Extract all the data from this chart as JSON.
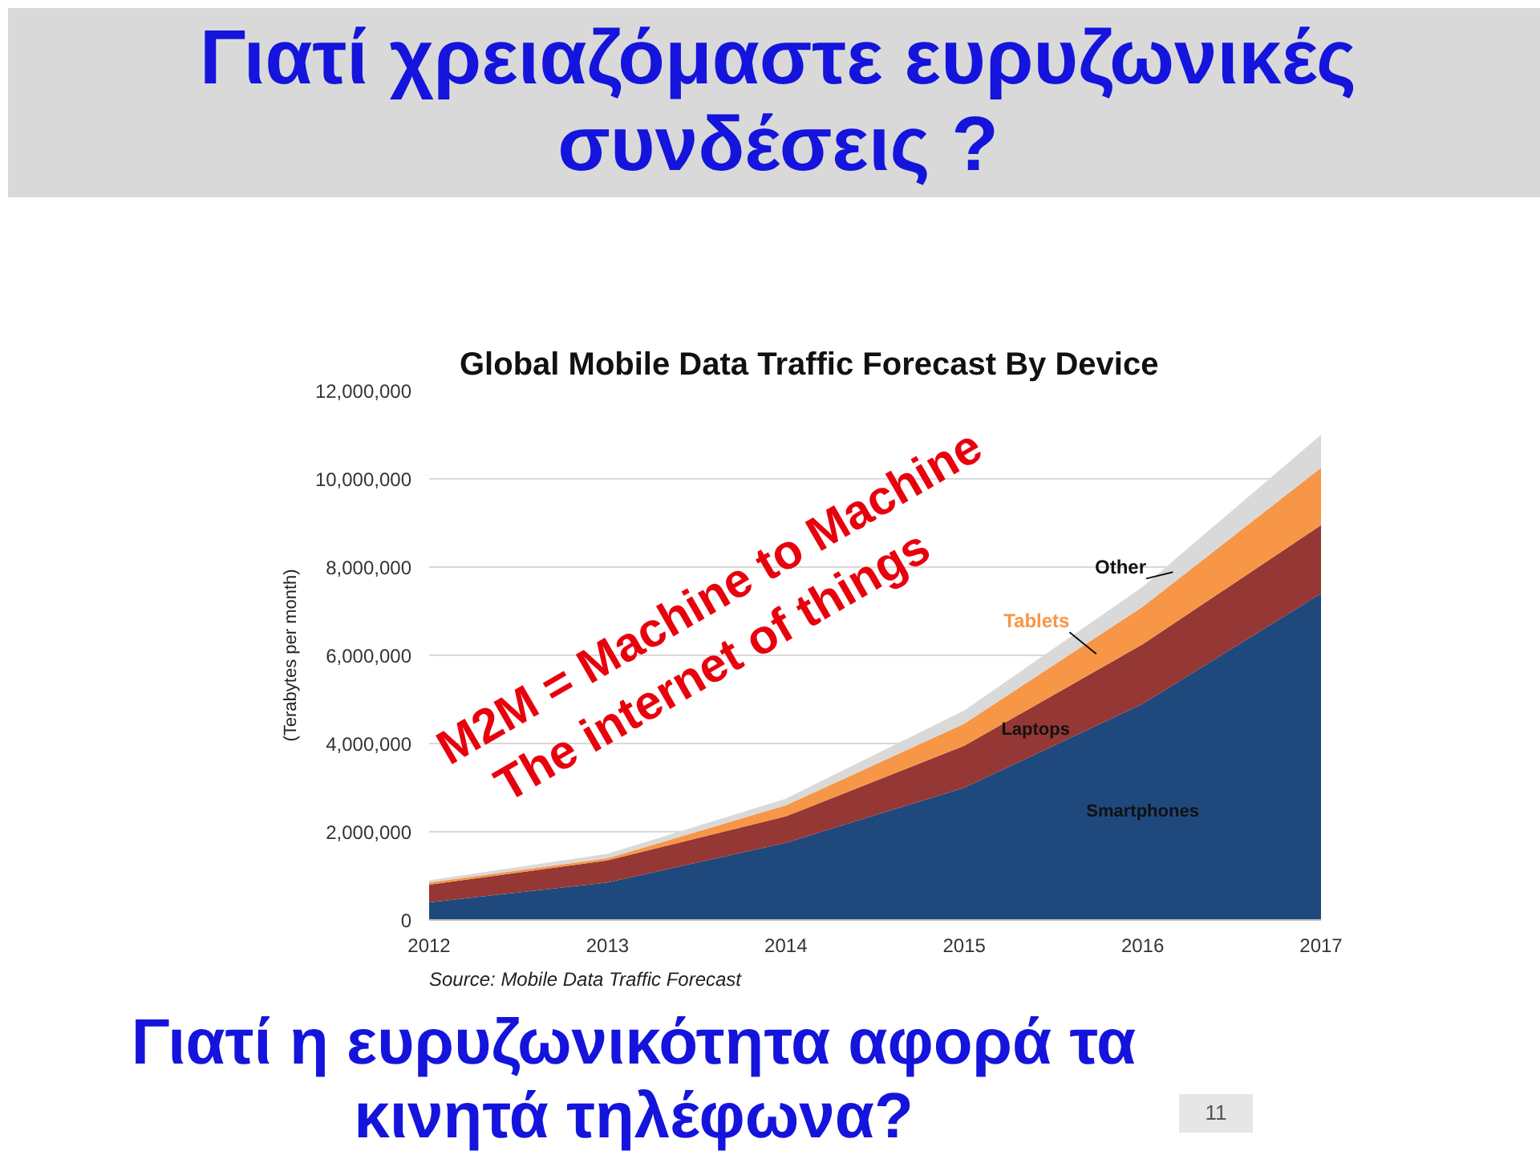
{
  "chart_data": {
    "type": "area",
    "stacked": true,
    "title": "Γιατί χρειαζόμαστε ευρυζωνικές συνδέσεις ?",
    "subtitle": "Global Mobile Data Traffic Forecast By Device",
    "ylabel": "(Terabytes per month)",
    "annotations": [
      "M2M = Machine to Machine",
      "The internet of things",
      "Source: Mobile Data Traffic Forecast",
      "Γιατί η ευρυζωνικότητα αφορά τα κινητά τηλέφωνα?",
      "11"
    ],
    "x": [
      2012,
      2013,
      2014,
      2015,
      2016,
      2017
    ],
    "xlim": [
      2012,
      2017
    ],
    "xticks": [
      2012,
      2013,
      2014,
      2015,
      2016,
      2017
    ],
    "ylim": [
      0,
      12000000
    ],
    "yticks": [
      0,
      {
        "value": 2000000,
        "label": "2,000,000"
      },
      {
        "value": 4000000,
        "label": "4,000,000"
      },
      {
        "value": 6000000,
        "label": "6,000,000"
      },
      {
        "value": 8000000,
        "label": "8,000,000"
      },
      {
        "value": 10000000,
        "label": "10,000,000"
      },
      {
        "value": 12000000,
        "label": "12,000,000"
      }
    ],
    "grid": "y",
    "series": [
      {
        "name": "Smartphones",
        "color": "#1f497d",
        "values": [
          400000,
          850000,
          1750000,
          3000000,
          4900000,
          7400000
        ]
      },
      {
        "name": "Laptops",
        "color": "#953735",
        "values": [
          400000,
          500000,
          600000,
          950000,
          1350000,
          1550000
        ]
      },
      {
        "name": "Tablets",
        "color": "#f79646",
        "values": [
          50000,
          50000,
          250000,
          500000,
          850000,
          1300000
        ]
      },
      {
        "name": "Other",
        "color": "#d9d9d9",
        "values": [
          50000,
          100000,
          150000,
          300000,
          450000,
          750000
        ]
      }
    ]
  }
}
